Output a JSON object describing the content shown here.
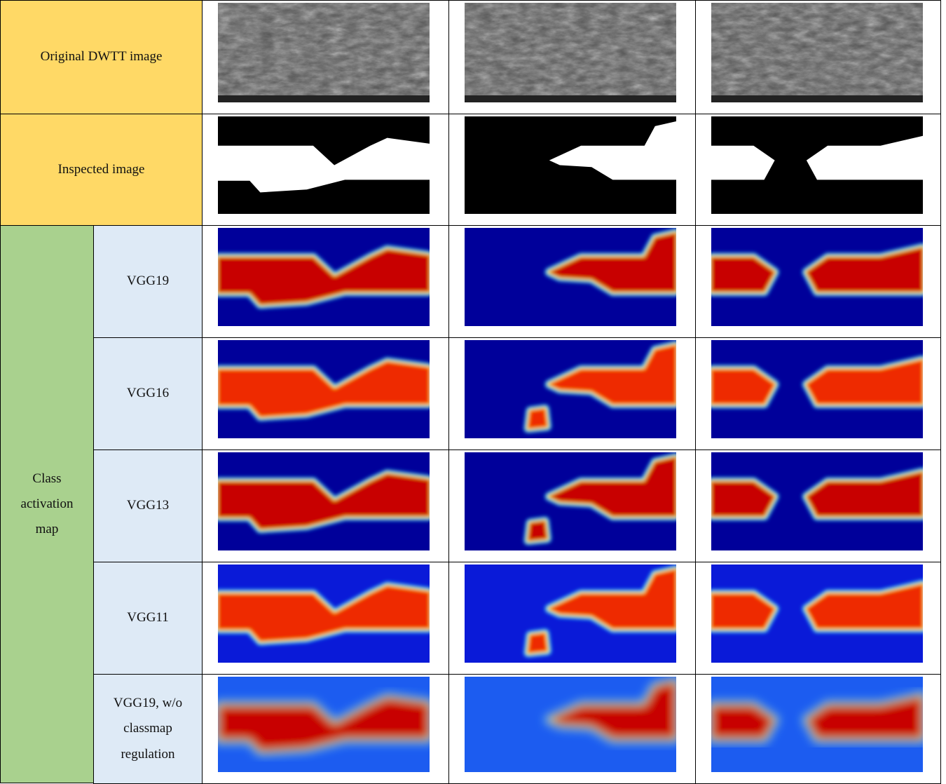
{
  "header_rows": [
    {
      "label": "Original DWTT image"
    },
    {
      "label": "Inspected image"
    }
  ],
  "group": {
    "label": "Class activation map",
    "rows": [
      "VGG19",
      "VGG16",
      "VGG13",
      "VGG11",
      "VGG19, w/o classmap regulation"
    ]
  }
}
